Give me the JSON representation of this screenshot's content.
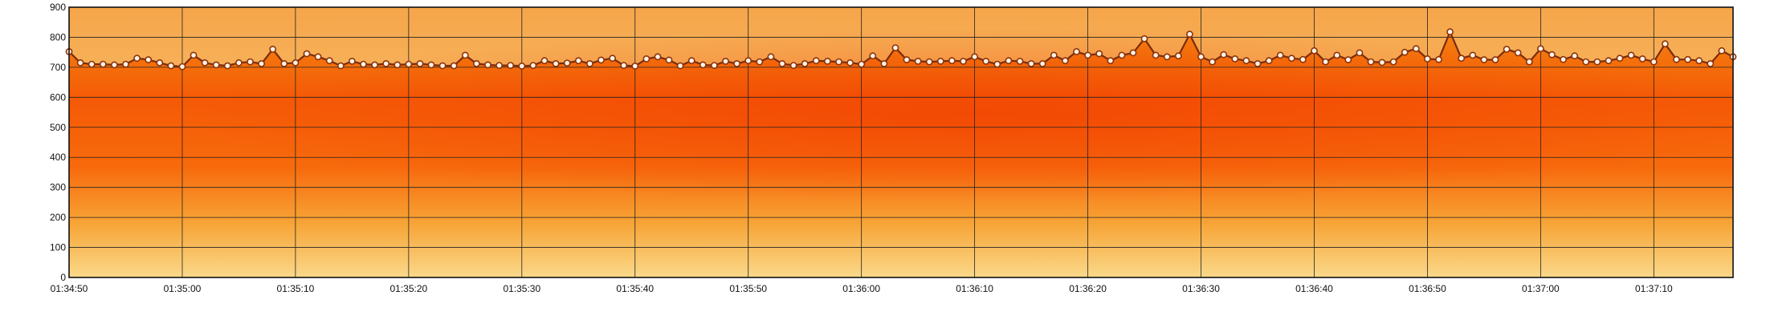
{
  "chart_data": {
    "type": "area",
    "title": "",
    "xlabel": "",
    "ylabel": "",
    "grid": true,
    "ylim": [
      0,
      900
    ],
    "y_ticks": [
      0,
      100,
      200,
      300,
      400,
      500,
      600,
      700,
      800,
      900
    ],
    "x_ticks": [
      "01:34:50",
      "01:35:00",
      "01:35:10",
      "01:35:20",
      "01:35:30",
      "01:35:40",
      "01:35:50",
      "01:36:00",
      "01:36:10",
      "01:36:20",
      "01:36:30",
      "01:36:40",
      "01:36:50",
      "01:37:00",
      "01:37:10"
    ],
    "xlim": [
      "01:34:50",
      "01:37:17"
    ],
    "sample_interval_s": 1,
    "colors": {
      "line": "#7a2c0c",
      "point_fill": "#fff3e6",
      "area_top": "#f4700f",
      "area_core": "#f54d05",
      "area_bottom": "#f9d57a"
    },
    "series": [
      {
        "x_start": "01:34:50",
        "values": [
          752,
          715,
          710,
          710,
          708,
          710,
          730,
          725,
          715,
          705,
          702,
          740,
          715,
          708,
          705,
          715,
          718,
          712,
          760,
          712,
          715,
          745,
          735,
          722,
          705,
          720,
          710,
          708,
          712,
          708,
          710,
          712,
          708,
          705,
          705,
          740,
          712,
          708,
          706,
          706,
          704,
          706,
          722,
          712,
          714,
          722,
          712,
          724,
          730,
          706,
          704,
          728,
          735,
          724,
          705,
          722,
          708,
          706,
          720,
          712,
          722,
          718,
          735,
          712,
          706,
          712,
          722,
          720,
          718,
          715,
          710,
          738,
          712,
          765,
          725,
          720,
          718,
          720,
          722,
          720,
          735,
          720,
          710,
          722,
          720,
          712,
          712,
          740,
          722,
          752,
          740,
          745,
          722,
          740,
          748,
          795,
          740,
          735,
          738,
          810,
          735,
          718,
          742,
          728,
          722,
          712,
          722,
          740,
          730,
          726,
          755,
          718,
          740,
          725,
          748,
          718,
          716,
          718,
          750,
          762,
          728,
          726,
          818,
          730,
          740,
          725,
          725,
          760,
          748,
          718,
          762,
          742,
          726,
          738,
          718,
          718,
          722,
          730,
          740,
          728,
          718,
          778,
          726,
          726,
          722,
          712,
          755,
          735
        ]
      }
    ]
  }
}
